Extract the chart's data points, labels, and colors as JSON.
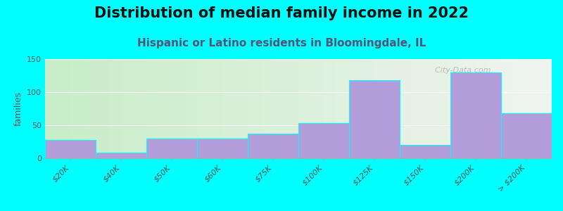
{
  "title": "Distribution of median family income in 2022",
  "subtitle": "Hispanic or Latino residents in Bloomingdale, IL",
  "ylabel": "families",
  "background_color": "#00FFFF",
  "bar_color": "#b39ddb",
  "categories": [
    "$20K",
    "$40K",
    "$50K",
    "$60K",
    "$75K",
    "$100K",
    "$125K",
    "$150K",
    "$200K",
    "> $200K"
  ],
  "values": [
    28,
    8,
    30,
    30,
    37,
    53,
    118,
    20,
    130,
    68
  ],
  "ylim": [
    0,
    150
  ],
  "yticks": [
    0,
    50,
    100,
    150
  ],
  "watermark": "  City-Data.com",
  "title_fontsize": 15,
  "subtitle_fontsize": 11,
  "ylabel_fontsize": 9,
  "tick_fontsize": 8,
  "grad_left": "#c8edc8",
  "grad_right": "#f0f4f0"
}
